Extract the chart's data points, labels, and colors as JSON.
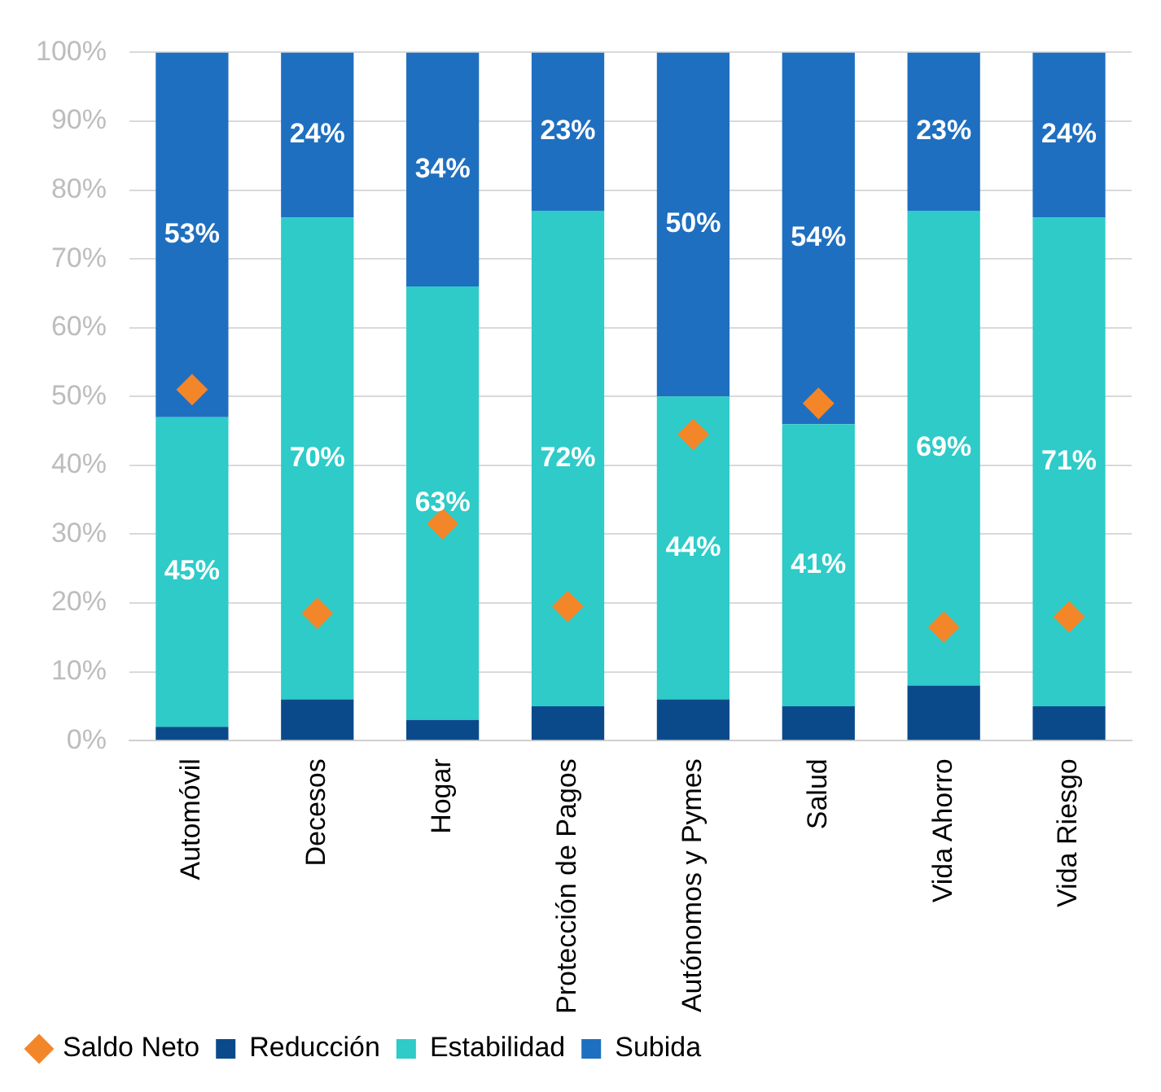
{
  "chart_data": {
    "type": "bar",
    "stacked": true,
    "categories": [
      "Automóvil",
      "Decesos",
      "Hogar",
      "Protección de Pagos",
      "Autónomos y Pymes",
      "Salud",
      "Vida Ahorro",
      "Vida Riesgo"
    ],
    "series": [
      {
        "name": "Reducción",
        "color": "#0b4a8a",
        "values": [
          2,
          6,
          3,
          5,
          6,
          5,
          8,
          5
        ]
      },
      {
        "name": "Estabilidad",
        "color": "#2ecbc8",
        "values": [
          45,
          70,
          63,
          72,
          44,
          41,
          69,
          71
        ],
        "value_labels": [
          "45%",
          "70%",
          "63%",
          "72%",
          "44%",
          "41%",
          "69%",
          "71%"
        ]
      },
      {
        "name": "Subida",
        "color": "#1f6fc0",
        "values": [
          53,
          24,
          34,
          23,
          50,
          54,
          23,
          24
        ],
        "value_labels": [
          "53%",
          "24%",
          "34%",
          "23%",
          "50%",
          "54%",
          "23%",
          "24%"
        ]
      },
      {
        "name": "Saldo Neto",
        "type": "scatter",
        "marker": "diamond",
        "color": "#f4862a",
        "x": [
          "Automóvil",
          "Decesos",
          "Hogar",
          "Protección de Pagos",
          "Autónomos y Pymes",
          "Salud",
          "Vida Ahorro",
          "Vida Riesgo"
        ],
        "values": [
          51,
          18.5,
          31.5,
          19.5,
          44.5,
          49,
          16.5,
          18
        ]
      }
    ],
    "ylim": [
      0,
      100
    ],
    "yticks": [
      {
        "value": 0,
        "label": "0%"
      },
      {
        "value": 10,
        "label": "10%"
      },
      {
        "value": 20,
        "label": "20%"
      },
      {
        "value": 30,
        "label": "30%"
      },
      {
        "value": 40,
        "label": "40%"
      },
      {
        "value": 50,
        "label": "50%"
      },
      {
        "value": 60,
        "label": "60%"
      },
      {
        "value": 70,
        "label": "70%"
      },
      {
        "value": 80,
        "label": "80%"
      },
      {
        "value": 90,
        "label": "90%"
      },
      {
        "value": 100,
        "label": "100%"
      }
    ],
    "grid": "y",
    "legend": "bottom left"
  }
}
